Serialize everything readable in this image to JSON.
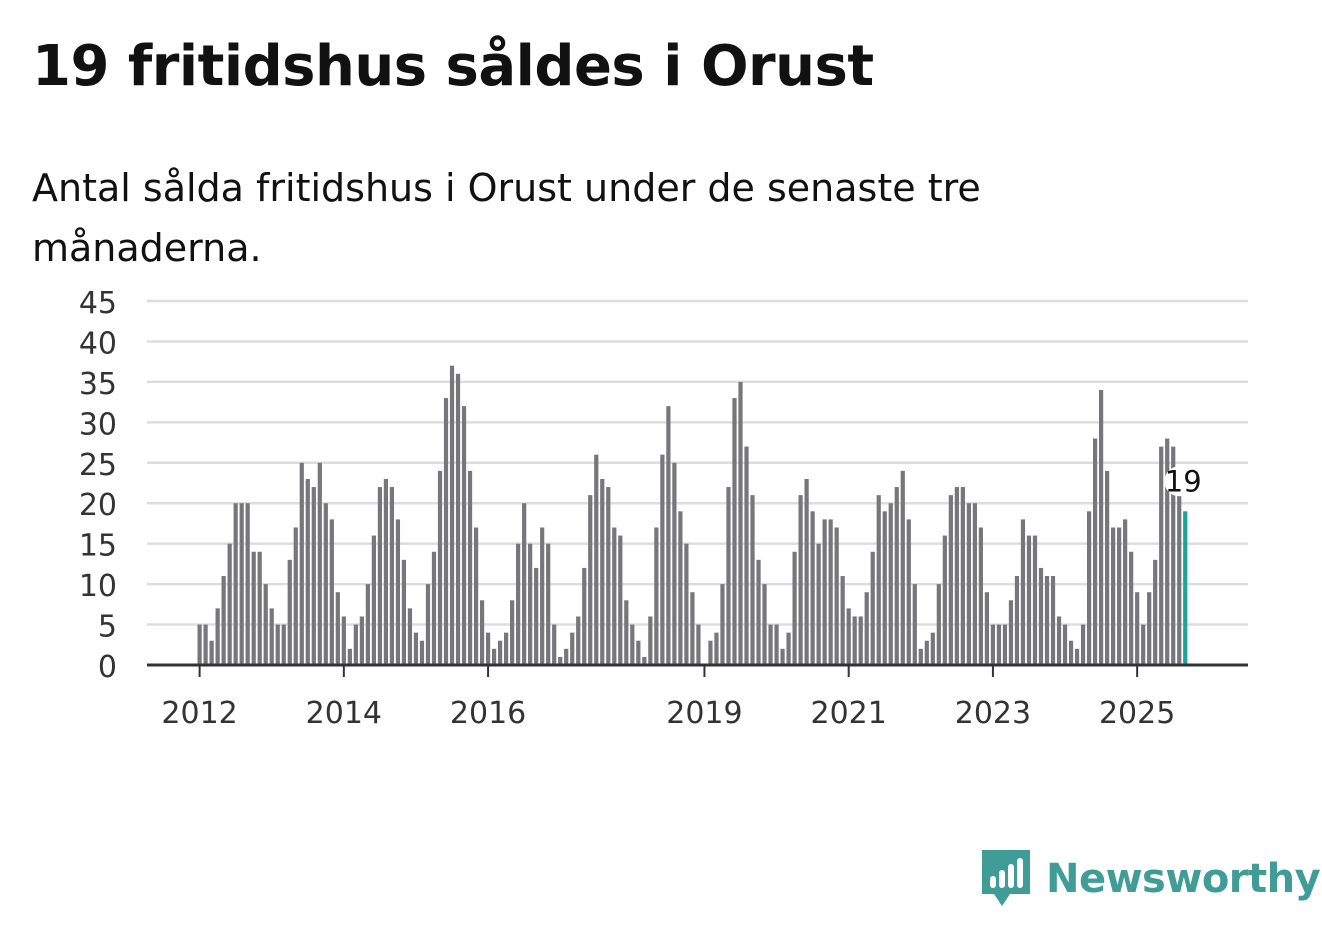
{
  "title": "19 fritidshus såldes i Orust",
  "subtitle": "Antal sålda fritidshus i Orust under de senaste tre månaderna.",
  "brand": {
    "name": "Newsworthy",
    "color": "#3f9c96"
  },
  "colors": {
    "bar": "#77767a",
    "highlight": "#1aa599",
    "grid": "#dddddd",
    "axis": "#333333"
  },
  "chart_data": {
    "type": "bar",
    "start": "2012-01",
    "ylim": [
      0,
      45
    ],
    "yticks": [
      0,
      5,
      10,
      15,
      20,
      25,
      30,
      35,
      40,
      45
    ],
    "xticks": [
      "2012",
      "2014",
      "2016",
      "2019",
      "2021",
      "2023",
      "2025"
    ],
    "grid": true,
    "highlight_label": "19",
    "values": [
      5,
      5,
      3,
      7,
      11,
      15,
      20,
      20,
      20,
      14,
      14,
      10,
      7,
      5,
      5,
      13,
      17,
      25,
      23,
      22,
      25,
      20,
      18,
      9,
      6,
      2,
      5,
      6,
      10,
      16,
      22,
      23,
      22,
      18,
      13,
      7,
      4,
      3,
      10,
      14,
      24,
      33,
      37,
      36,
      32,
      24,
      17,
      8,
      4,
      2,
      3,
      4,
      8,
      15,
      20,
      15,
      12,
      17,
      15,
      5,
      1,
      2,
      4,
      6,
      12,
      21,
      26,
      23,
      22,
      17,
      16,
      8,
      5,
      3,
      1,
      6,
      17,
      26,
      32,
      25,
      19,
      15,
      9,
      5,
      0,
      3,
      4,
      10,
      22,
      33,
      35,
      27,
      21,
      13,
      10,
      5,
      5,
      2,
      4,
      14,
      21,
      23,
      19,
      15,
      18,
      18,
      17,
      11,
      7,
      6,
      6,
      9,
      14,
      21,
      19,
      20,
      22,
      24,
      18,
      10,
      2,
      3,
      4,
      10,
      16,
      21,
      22,
      22,
      20,
      20,
      17,
      9,
      5,
      5,
      5,
      8,
      11,
      18,
      16,
      16,
      12,
      11,
      11,
      6,
      5,
      3,
      2,
      5,
      19,
      28,
      34,
      24,
      17,
      17,
      18,
      14,
      9,
      5,
      9,
      13,
      27,
      28,
      27,
      21,
      19
    ]
  }
}
